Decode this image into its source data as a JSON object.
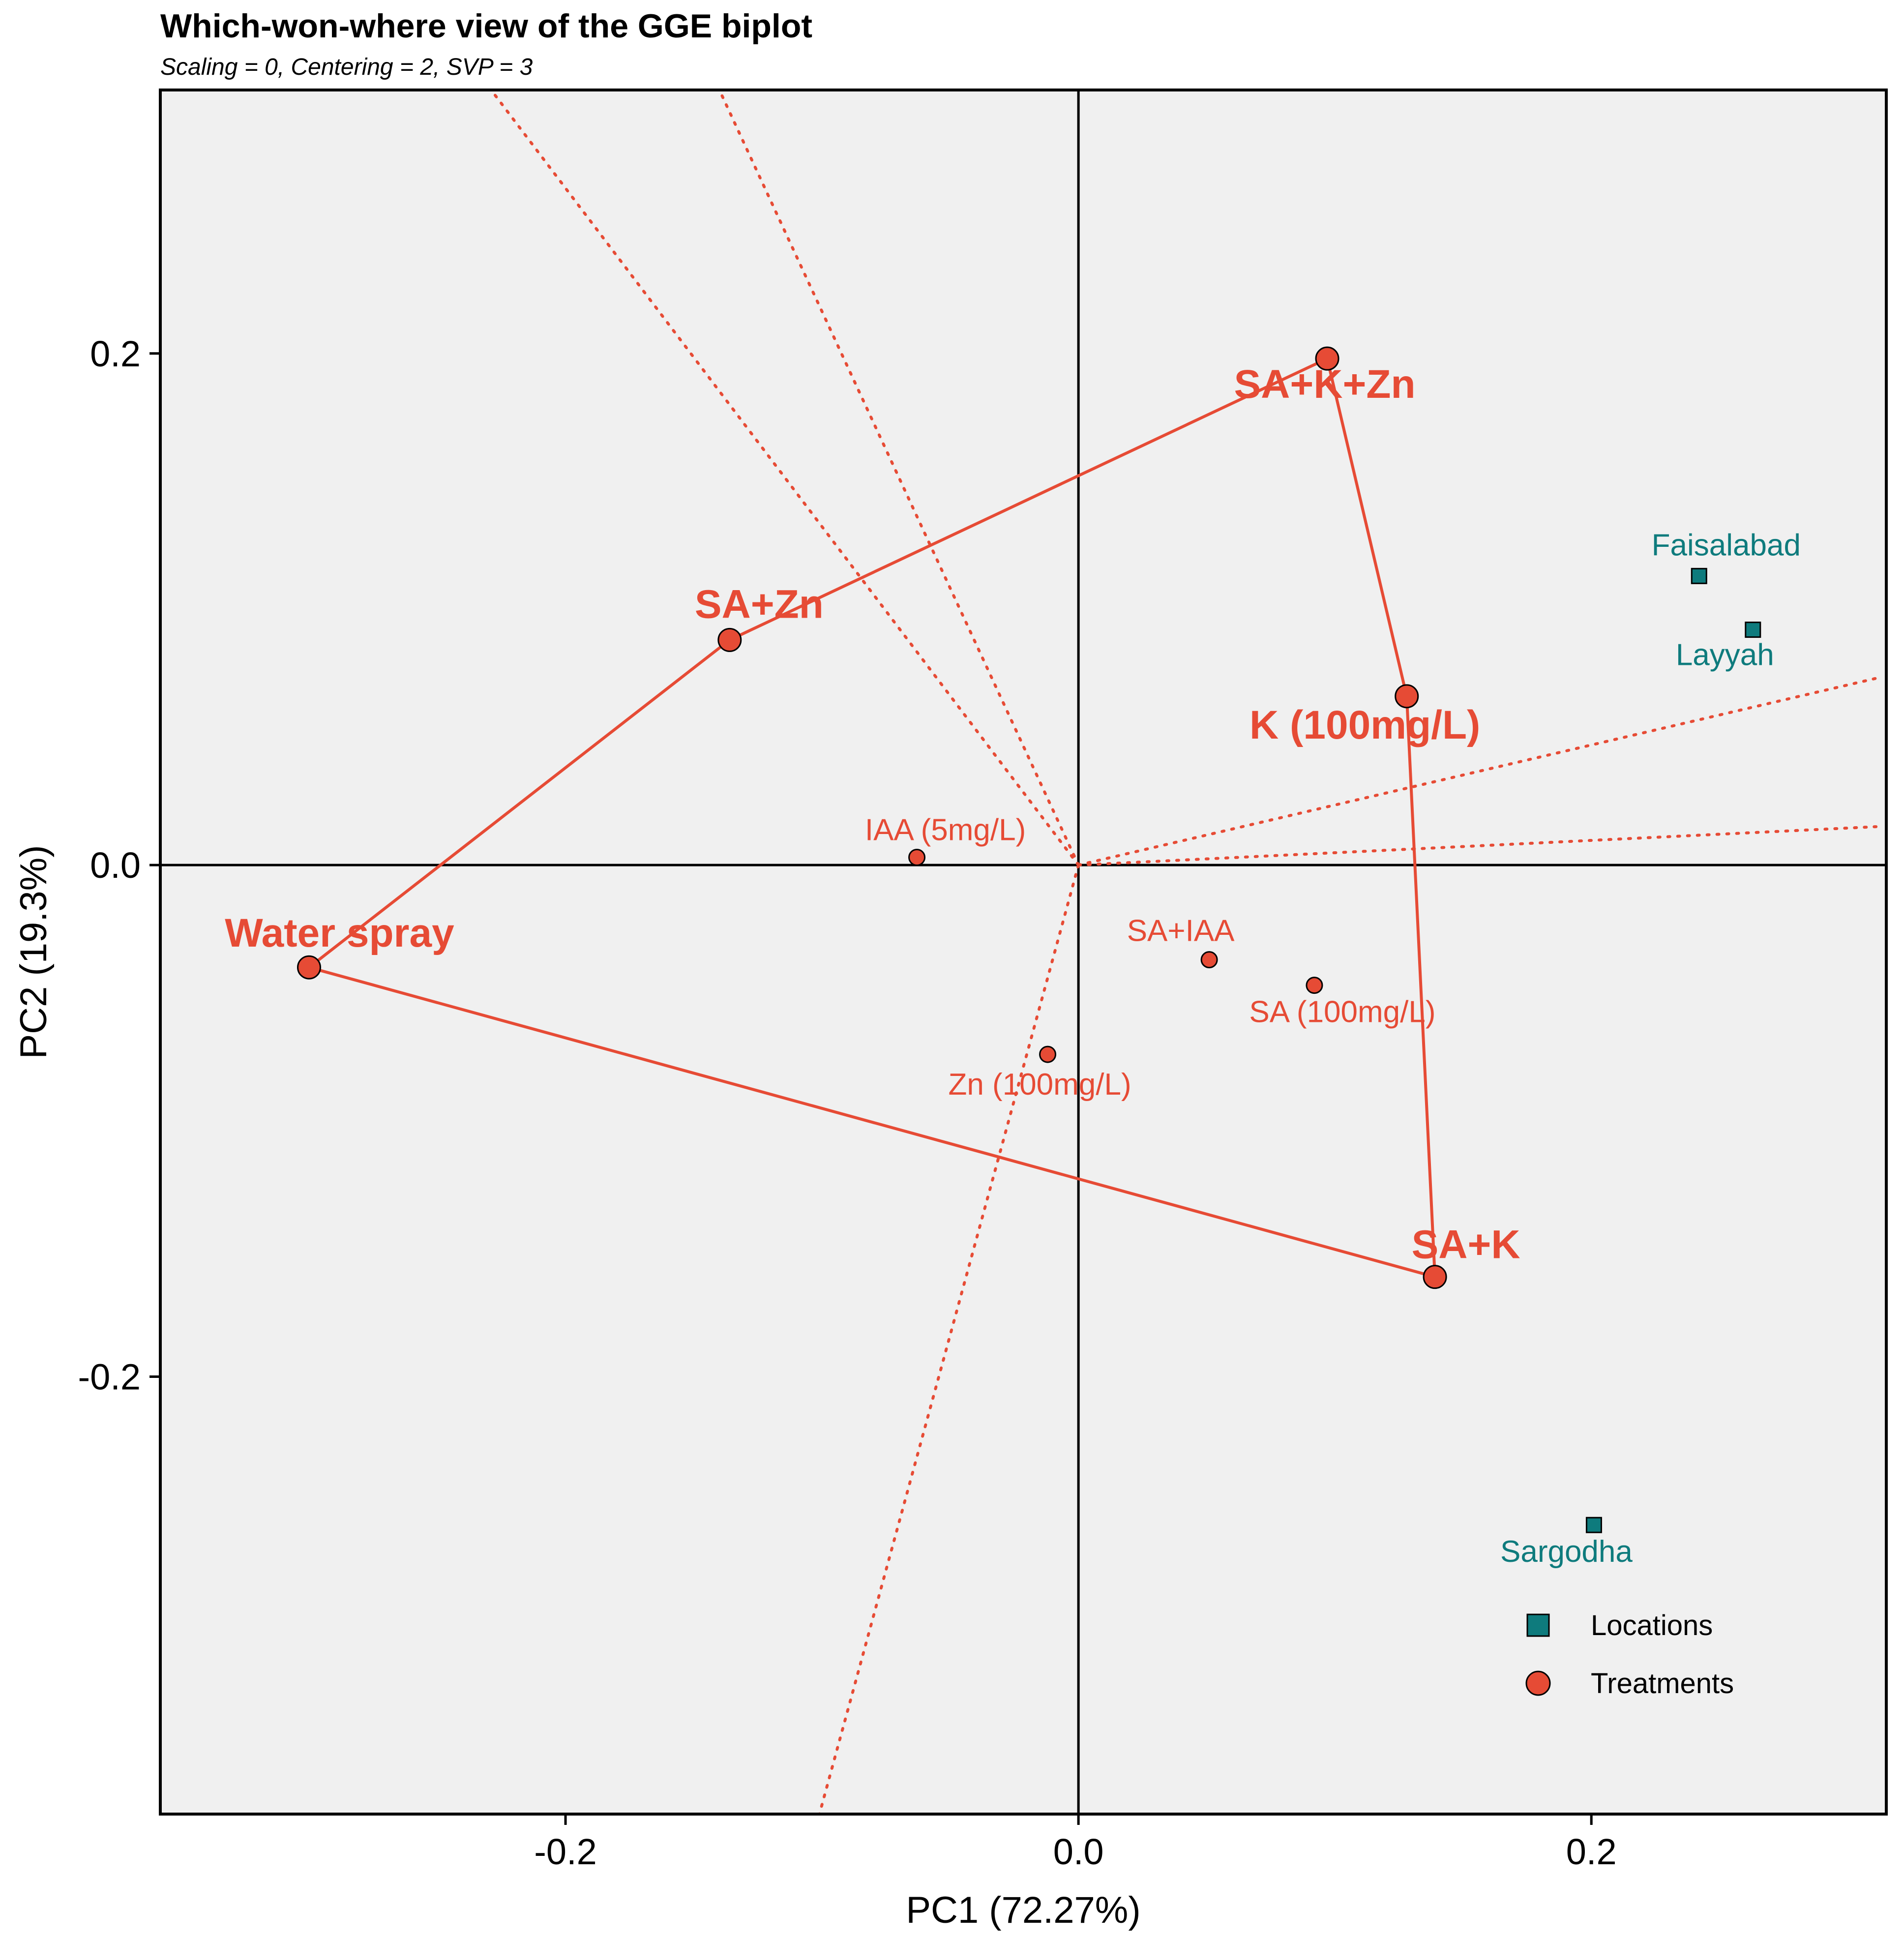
{
  "chart_data": {
    "type": "scatter",
    "title": "Which-won-where view of the GGE biplot",
    "subtitle": "Scaling = 0, Centering = 2, SVP = 3",
    "xlabel": "PC1 (72.27%)",
    "ylabel": "PC2 (19.3%)",
    "xlim": [
      -0.358,
      0.315
    ],
    "ylim": [
      -0.371,
      0.303
    ],
    "xticks": [
      -0.2,
      0.0,
      0.2
    ],
    "yticks": [
      -0.2,
      0.0,
      0.2
    ],
    "xtick_labels": [
      "-0.2",
      "0.0",
      "0.2"
    ],
    "ytick_labels": [
      "-0.2",
      "0.0",
      "0.2"
    ],
    "grid": false,
    "legend_position": "bottom-right",
    "legend": [
      {
        "label": "Locations",
        "marker": "square",
        "color": "#0e7b7d"
      },
      {
        "label": "Treatments",
        "marker": "circle",
        "color": "#e64b35"
      }
    ],
    "colors": {
      "treatment": "#e64b35",
      "location": "#0e7b7d",
      "panel": "#f0f0f0",
      "sector_line": "#e64b35"
    },
    "treatments": [
      {
        "label": "SA+K+Zn",
        "x": 0.097,
        "y": 0.198,
        "vertex": true
      },
      {
        "label": "SA+Zn",
        "x": -0.136,
        "y": 0.088,
        "vertex": true
      },
      {
        "label": "K (100mg/L)",
        "x": 0.128,
        "y": 0.066,
        "vertex": true
      },
      {
        "label": "Water spray",
        "x": -0.3,
        "y": -0.04,
        "vertex": true
      },
      {
        "label": "SA+K",
        "x": 0.139,
        "y": -0.161,
        "vertex": true
      },
      {
        "label": "IAA (5mg/L)",
        "x": -0.063,
        "y": 0.003,
        "vertex": false
      },
      {
        "label": "SA+IAA",
        "x": 0.051,
        "y": -0.037,
        "vertex": false
      },
      {
        "label": "SA (100mg/L)",
        "x": 0.092,
        "y": -0.047,
        "vertex": false
      },
      {
        "label": "Zn (100mg/L)",
        "x": -0.012,
        "y": -0.074,
        "vertex": false
      }
    ],
    "locations": [
      {
        "label": "Faisalabad",
        "x": 0.242,
        "y": 0.113
      },
      {
        "label": "Layyah",
        "x": 0.263,
        "y": 0.092
      },
      {
        "label": "Sargodha",
        "x": 0.201,
        "y": -0.258
      }
    ],
    "polygon": [
      "Water spray",
      "SA+Zn",
      "SA+K+Zn",
      "K (100mg/L)",
      "SA+K",
      "Water spray"
    ],
    "sector_rays": [
      {
        "toward": [
          -0.229,
          0.303
        ]
      },
      {
        "toward": [
          -0.14,
          0.303
        ]
      },
      {
        "toward": [
          0.311,
          0.073
        ]
      },
      {
        "toward": [
          0.311,
          0.015
        ]
      },
      {
        "toward": [
          -0.101,
          -0.371
        ]
      }
    ]
  }
}
